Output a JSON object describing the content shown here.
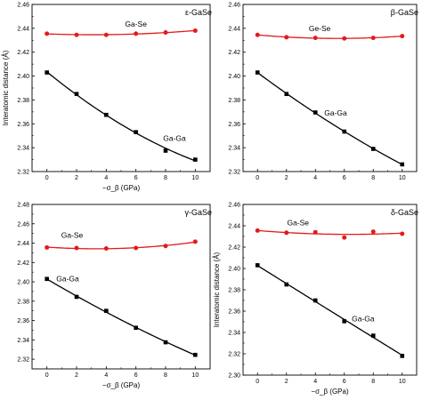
{
  "colors": {
    "ga_se": "#e41a1c",
    "ga_ga": "#000000",
    "axes": "#000000"
  },
  "chart_data": [
    {
      "type": "line",
      "title": "ε-GaSe",
      "xlabel": "−σ_β (GPa)",
      "ylabel": "Interatomic distance (Å)",
      "xlim": [
        -1,
        11
      ],
      "ylim": [
        2.32,
        2.46
      ],
      "xticks": [
        "0",
        "2",
        "4",
        "6",
        "8",
        "10"
      ],
      "yticks": [
        "2.32",
        "2.34",
        "2.36",
        "2.38",
        "2.40",
        "2.42",
        "2.44",
        "2.46"
      ],
      "grid": false,
      "series": [
        {
          "name": "Ga-Se",
          "marker": "circle",
          "color": "#e41a1c",
          "x": [
            0,
            2,
            4,
            6,
            8,
            10
          ],
          "values": [
            2.4355,
            2.4345,
            2.4345,
            2.4355,
            2.4365,
            2.438
          ]
        },
        {
          "name": "Ga-Ga",
          "marker": "square",
          "color": "#000000",
          "x": [
            0,
            2,
            4,
            6,
            8,
            10
          ],
          "values": [
            2.403,
            2.385,
            2.3675,
            2.353,
            2.3375,
            2.33
          ]
        }
      ]
    },
    {
      "type": "line",
      "title": "β-GaSe",
      "xlabel": "",
      "ylabel": "",
      "xlim": [
        -1,
        11
      ],
      "ylim": [
        2.32,
        2.46
      ],
      "xticks": [
        "0",
        "2",
        "4",
        "6",
        "8",
        "10"
      ],
      "yticks": [
        "2.32",
        "2.34",
        "2.36",
        "2.38",
        "2.40",
        "2.42",
        "2.44",
        "2.46"
      ],
      "grid": false,
      "series": [
        {
          "name": "Ge-Se",
          "marker": "circle",
          "color": "#e41a1c",
          "x": [
            0,
            2,
            4,
            6,
            8,
            10
          ],
          "values": [
            2.4345,
            2.4325,
            2.432,
            2.4315,
            2.432,
            2.4335
          ]
        },
        {
          "name": "Ga-Ga",
          "marker": "square",
          "color": "#000000",
          "x": [
            0,
            2,
            4,
            6,
            8,
            10
          ],
          "values": [
            2.403,
            2.385,
            2.3695,
            2.3535,
            2.339,
            2.326
          ]
        }
      ]
    },
    {
      "type": "line",
      "title": "γ-GaSe",
      "xlabel": "−σ_β (GPa)",
      "ylabel": "",
      "xlim": [
        -1,
        11
      ],
      "ylim": [
        2.31,
        2.48
      ],
      "xticks": [
        "0",
        "2",
        "4",
        "6",
        "8",
        "10"
      ],
      "yticks": [
        "2.32",
        "2.34",
        "2.36",
        "2.38",
        "2.40",
        "2.42",
        "2.44",
        "2.46",
        "2.48"
      ],
      "grid": false,
      "series": [
        {
          "name": "Ga-Se",
          "marker": "circle",
          "color": "#e41a1c",
          "x": [
            0,
            2,
            4,
            6,
            8,
            10
          ],
          "values": [
            2.4355,
            2.435,
            2.4345,
            2.435,
            2.437,
            2.4415
          ]
        },
        {
          "name": "Ga-Ga",
          "marker": "square",
          "color": "#000000",
          "x": [
            0,
            2,
            4,
            6,
            8,
            10
          ],
          "values": [
            2.403,
            2.3845,
            2.37,
            2.3525,
            2.3375,
            2.3245
          ]
        }
      ]
    },
    {
      "type": "line",
      "title": "δ-GaSe",
      "xlabel": "−σ_β (GPa)",
      "ylabel": "Interatomic distance (Å)",
      "xlim": [
        -1,
        11
      ],
      "ylim": [
        2.3,
        2.46
      ],
      "xticks": [
        "0",
        "2",
        "4",
        "6",
        "8",
        "10"
      ],
      "yticks": [
        "2.30",
        "2.32",
        "2.34",
        "2.36",
        "2.38",
        "2.40",
        "2.42",
        "2.44",
        "2.46"
      ],
      "grid": false,
      "series": [
        {
          "name": "Ga-Se",
          "marker": "circle",
          "color": "#e41a1c",
          "x": [
            0,
            2,
            4,
            6,
            8,
            10
          ],
          "values": [
            2.4355,
            2.4335,
            2.434,
            2.429,
            2.4345,
            2.4325
          ]
        },
        {
          "name": "Ga-Ga",
          "marker": "square",
          "color": "#000000",
          "x": [
            0,
            2,
            4,
            6,
            8,
            10
          ],
          "values": [
            2.403,
            2.385,
            2.37,
            2.3505,
            2.337,
            2.318
          ]
        }
      ]
    }
  ]
}
